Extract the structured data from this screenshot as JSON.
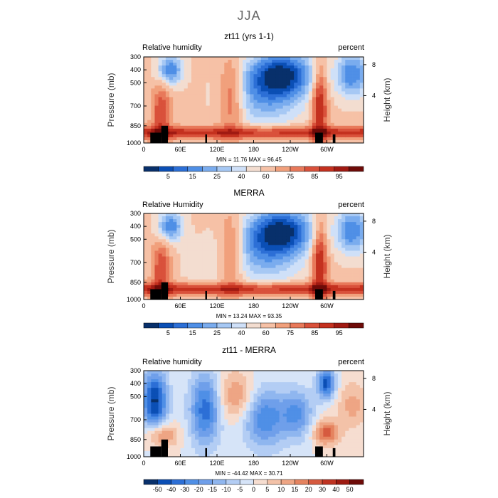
{
  "figure_title": "JJA",
  "chart_data": [
    {
      "type": "heatmap",
      "title": "zt11 (yrs 1-1)",
      "left_label": "Relative humidity",
      "right_label": "percent",
      "ylabel": "Pressure (mb)",
      "y2label": "Height (km)",
      "x_ticks": [
        "0",
        "60E",
        "120E",
        "180",
        "120W",
        "60W"
      ],
      "y_ticks": [
        "300",
        "400",
        "500",
        "700",
        "850",
        "1000"
      ],
      "y2_ticks": [
        "8",
        "4"
      ],
      "stats": "MIN =   11.76   MAX =   96.45",
      "colorbar": {
        "labels": [
          "5",
          "15",
          "25",
          "40",
          "60",
          "75",
          "85",
          "95"
        ],
        "colors": [
          "#08306b",
          "#0b4fb5",
          "#2c6fd6",
          "#4f8fe6",
          "#7aacee",
          "#a6c8f4",
          "#cfe0f8",
          "#f3ddd0",
          "#f6c1a6",
          "#f1a07c",
          "#e8795a",
          "#d9513b",
          "#c4311f",
          "#a01a12",
          "#6e0b08"
        ]
      }
    },
    {
      "type": "heatmap",
      "title": "MERRA",
      "left_label": "Relative Humidity",
      "right_label": "percent",
      "ylabel": "Pressure (mb)",
      "y2label": "Height (km)",
      "x_ticks": [
        "0",
        "60E",
        "120E",
        "180",
        "120W",
        "60W"
      ],
      "y_ticks": [
        "300",
        "400",
        "500",
        "700",
        "850",
        "1000"
      ],
      "y2_ticks": [
        "8",
        "4"
      ],
      "stats": "MIN =   13.24   MAX =   93.35",
      "colorbar": {
        "labels": [
          "5",
          "15",
          "25",
          "40",
          "60",
          "75",
          "85",
          "95"
        ],
        "colors": [
          "#08306b",
          "#0b4fb5",
          "#2c6fd6",
          "#4f8fe6",
          "#7aacee",
          "#a6c8f4",
          "#cfe0f8",
          "#f3ddd0",
          "#f6c1a6",
          "#f1a07c",
          "#e8795a",
          "#d9513b",
          "#c4311f",
          "#a01a12",
          "#6e0b08"
        ]
      }
    },
    {
      "type": "heatmap",
      "title": "zt11 - MERRA",
      "left_label": "Relative humidity",
      "right_label": "percent",
      "ylabel": "Pressure (mb)",
      "y2label": "Height (km)",
      "x_ticks": [
        "0",
        "60E",
        "120E",
        "180",
        "120W",
        "60W"
      ],
      "y_ticks": [
        "300",
        "400",
        "500",
        "700",
        "850",
        "1000"
      ],
      "y2_ticks": [
        "8",
        "4"
      ],
      "stats": "MIN =  -44.42   MAX =   30.71",
      "colorbar": {
        "labels": [
          "-50",
          "-40",
          "-30",
          "-20",
          "-15",
          "-10",
          "-5",
          "0",
          "5",
          "10",
          "15",
          "20",
          "30",
          "40",
          "50"
        ],
        "colors": [
          "#08306b",
          "#0b4fb5",
          "#2c6fd6",
          "#4f8fe6",
          "#6f9fea",
          "#8fb6ef",
          "#b3cdf4",
          "#d6e4f8",
          "#f6ddd0",
          "#f3c2a8",
          "#eea584",
          "#e5835f",
          "#d65a3f",
          "#bf3322",
          "#9d1a10",
          "#6e0b08"
        ]
      }
    }
  ]
}
